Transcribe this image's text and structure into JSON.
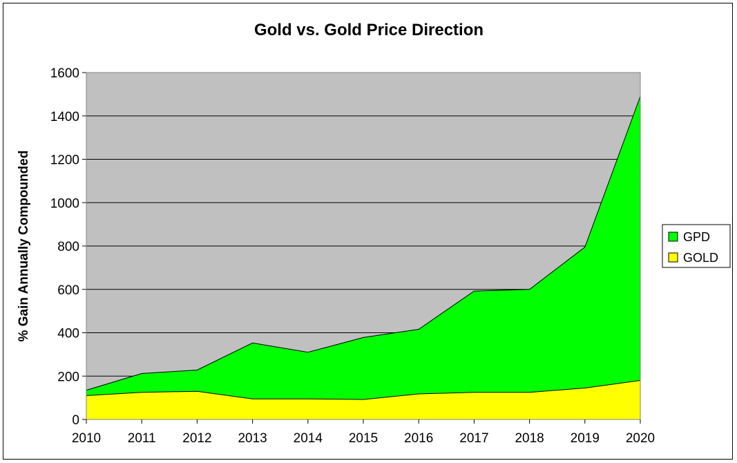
{
  "chart_data": {
    "type": "area",
    "stacked": true,
    "title": "Gold vs. Gold Price Direction",
    "xlabel": "",
    "ylabel": "% Gain Annually Compounded",
    "x": [
      "2010",
      "2011",
      "2012",
      "2013",
      "2014",
      "2015",
      "2016",
      "2017",
      "2018",
      "2019",
      "2020"
    ],
    "ylim": [
      0,
      1600
    ],
    "yticks": [
      "0",
      "200",
      "400",
      "600",
      "800",
      "1000",
      "1200",
      "1400",
      "1600"
    ],
    "grid": true,
    "legend_position": "right",
    "plot_background": "#C0C0C0",
    "series": [
      {
        "name": "GOLD",
        "color": "#FFFF00",
        "values": [
          110,
          125,
          130,
          95,
          95,
          92,
          118,
          125,
          125,
          145,
          180
        ]
      },
      {
        "name": "GPD",
        "color": "#00FF00",
        "cumulative_values": [
          135,
          212,
          228,
          353,
          310,
          378,
          416,
          592,
          600,
          795,
          1490
        ]
      }
    ]
  }
}
